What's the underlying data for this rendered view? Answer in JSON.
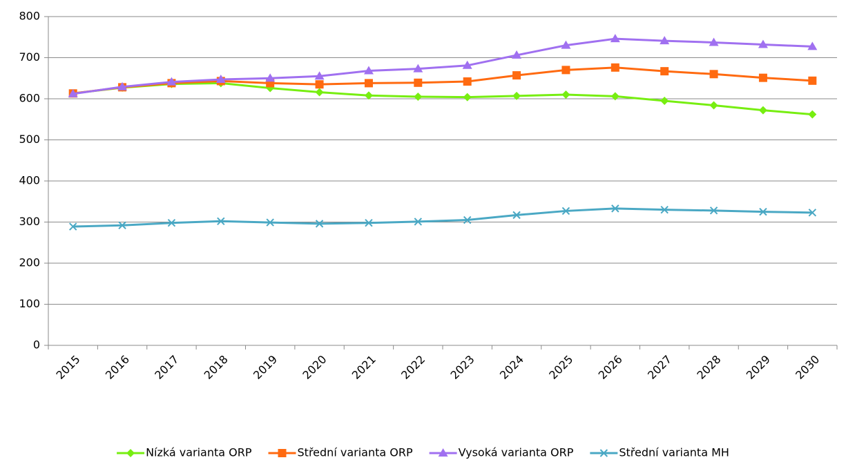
{
  "chart_data": {
    "type": "line",
    "categories": [
      "2015",
      "2016",
      "2017",
      "2018",
      "2019",
      "2020",
      "2021",
      "2022",
      "2023",
      "2024",
      "2025",
      "2026",
      "2027",
      "2028",
      "2029",
      "2030"
    ],
    "series": [
      {
        "name": "Nízká varianta ORP",
        "color": "#77ee11",
        "marker": "diamond",
        "values": [
          613,
          627,
          636,
          638,
          626,
          616,
          608,
          605,
          604,
          607,
          610,
          606,
          595,
          584,
          572,
          562
        ]
      },
      {
        "name": "Střední varianta ORP",
        "color": "#ff6a10",
        "marker": "square",
        "values": [
          613,
          628,
          638,
          643,
          638,
          635,
          638,
          639,
          642,
          657,
          670,
          676,
          667,
          660,
          651,
          644
        ]
      },
      {
        "name": "Vysoká varianta ORP",
        "color": "#a070f0",
        "marker": "triangle",
        "values": [
          612,
          629,
          641,
          647,
          650,
          655,
          668,
          673,
          681,
          706,
          730,
          746,
          741,
          737,
          732,
          727
        ]
      },
      {
        "name": "Střední varianta MH",
        "color": "#4aa8c4",
        "marker": "x",
        "values": [
          289,
          292,
          298,
          302,
          299,
          296,
          298,
          301,
          305,
          317,
          327,
          333,
          330,
          328,
          325,
          323
        ]
      }
    ],
    "ylim": [
      0,
      800
    ],
    "yticks": [
      0,
      100,
      200,
      300,
      400,
      500,
      600,
      700,
      800
    ],
    "grid": true,
    "legend": "bottom"
  }
}
